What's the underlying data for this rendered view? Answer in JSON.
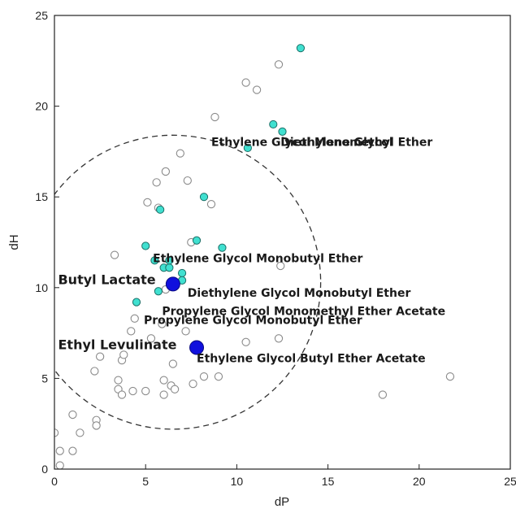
{
  "chart_data": {
    "type": "scatter",
    "title": "",
    "xlabel": "dP",
    "ylabel": "dH",
    "xlim": [
      0,
      25
    ],
    "ylim": [
      0,
      25
    ],
    "xticks": [
      0,
      5,
      10,
      15,
      20,
      25
    ],
    "yticks": [
      0,
      5,
      10,
      15,
      20,
      25
    ],
    "grid": false,
    "colors": {
      "inside": "#40E0D0",
      "outside": "#ffffff",
      "target": "#1010DD",
      "circle": "#333333"
    },
    "sphere": {
      "center": [
        6.5,
        10.3
      ],
      "radius": 8.1
    },
    "series": [
      {
        "role": "outside",
        "points": [
          [
            0,
            2.0
          ],
          [
            0.3,
            1.0
          ],
          [
            0.3,
            0.2
          ],
          [
            1.0,
            1.0
          ],
          [
            1.0,
            3.0
          ],
          [
            1.4,
            2.0
          ],
          [
            2.2,
            5.4
          ],
          [
            2.3,
            2.7
          ],
          [
            2.3,
            2.4
          ],
          [
            2.5,
            6.2
          ],
          [
            3.3,
            11.8
          ],
          [
            3.5,
            4.9
          ],
          [
            3.5,
            4.4
          ],
          [
            3.7,
            4.1
          ],
          [
            3.7,
            6.0
          ],
          [
            3.8,
            6.3
          ],
          [
            4.3,
            4.3
          ],
          [
            4.2,
            7.6
          ],
          [
            4.4,
            8.3
          ],
          [
            5.0,
            4.3
          ],
          [
            5.1,
            14.7
          ],
          [
            5.3,
            7.2
          ],
          [
            5.6,
            15.8
          ],
          [
            5.7,
            14.4
          ],
          [
            5.9,
            8.0
          ],
          [
            6.0,
            4.9
          ],
          [
            6.1,
            16.4
          ],
          [
            6.0,
            4.1
          ],
          [
            6.1,
            9.9
          ],
          [
            6.4,
            4.6
          ],
          [
            6.5,
            5.8
          ],
          [
            6.6,
            4.4
          ],
          [
            6.9,
            17.4
          ],
          [
            7.2,
            7.6
          ],
          [
            7.3,
            15.9
          ],
          [
            7.5,
            12.5
          ],
          [
            7.6,
            4.7
          ],
          [
            8.2,
            5.1
          ],
          [
            8.6,
            14.6
          ],
          [
            8.8,
            19.4
          ],
          [
            9.0,
            5.1
          ],
          [
            10.5,
            7.0
          ],
          [
            10.5,
            21.3
          ],
          [
            11.1,
            20.9
          ],
          [
            12.3,
            22.3
          ],
          [
            12.3,
            7.2
          ],
          [
            12.4,
            11.2
          ],
          [
            18.0,
            4.1
          ],
          [
            21.7,
            5.1
          ]
        ]
      },
      {
        "role": "inside",
        "points": [
          [
            4.5,
            9.2
          ],
          [
            5.0,
            12.3
          ],
          [
            5.5,
            11.5
          ],
          [
            5.7,
            9.8
          ],
          [
            5.8,
            14.3
          ],
          [
            6.0,
            11.1
          ],
          [
            6.3,
            11.1
          ],
          [
            6.3,
            11.5
          ],
          [
            7.0,
            10.8
          ],
          [
            7.0,
            10.4
          ],
          [
            7.8,
            12.6
          ],
          [
            8.2,
            15.0
          ],
          [
            9.2,
            12.2
          ],
          [
            10.6,
            17.7
          ],
          [
            12.0,
            19.0
          ],
          [
            12.5,
            18.6
          ],
          [
            13.5,
            23.2
          ]
        ]
      },
      {
        "role": "target",
        "points": [
          [
            6.5,
            10.2
          ],
          [
            7.8,
            6.7
          ]
        ]
      }
    ],
    "annotations": [
      {
        "text": "Diethylene Glycol",
        "x": 12.4,
        "y": 17.8,
        "size": 14
      },
      {
        "text": "Ethylene Glycol Monomethyl Ether",
        "x": 8.6,
        "y": 17.8,
        "size": 14
      },
      {
        "text": "Ethylene Glycol Monobutyl Ether",
        "x": 5.4,
        "y": 11.4,
        "size": 14
      },
      {
        "text": "Diethylene Glycol Monobutyl Ether",
        "x": 7.3,
        "y": 9.5,
        "size": 14
      },
      {
        "text": "Propylene Glycol Monomethyl Ether Acetate",
        "x": 5.9,
        "y": 8.5,
        "size": 14
      },
      {
        "text": "Propylene Glycol Monobutyl Ether",
        "x": 4.9,
        "y": 8.0,
        "size": 14
      },
      {
        "text": "Ethylene Glycol Butyl Ether Acetate",
        "x": 7.8,
        "y": 5.9,
        "size": 14
      },
      {
        "text": "Butyl Lactate",
        "x": 0.2,
        "y": 10.2,
        "size": 16
      },
      {
        "text": "Ethyl Levulinate",
        "x": 0.2,
        "y": 6.6,
        "size": 16
      }
    ]
  }
}
